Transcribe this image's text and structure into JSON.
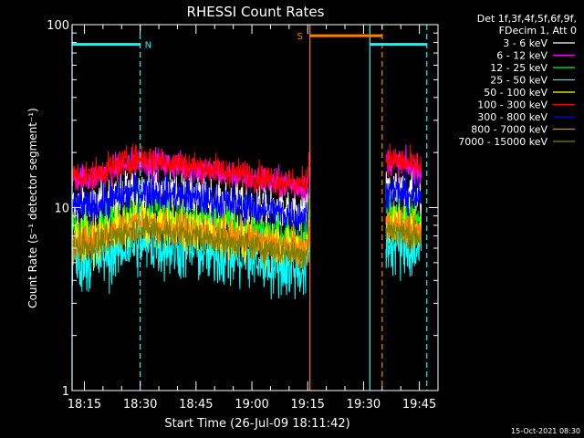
{
  "chart_data": {
    "type": "line",
    "title": "RHESSI Count Rates",
    "xlabel": "Start Time (26-Jul-09 18:11:42)",
    "ylabel": "Count Rate (s⁻¹ detector segment⁻¹)",
    "yscale": "log",
    "ylim": [
      1,
      100
    ],
    "xlim_min": [
      1091.7,
      1190.0
    ],
    "xticks": [
      {
        "min": 1095,
        "label": "18:15"
      },
      {
        "min": 1110,
        "label": "18:30"
      },
      {
        "min": 1125,
        "label": "18:45"
      },
      {
        "min": 1140,
        "label": "19:00"
      },
      {
        "min": 1155,
        "label": "19:15"
      },
      {
        "min": 1170,
        "label": "19:30"
      },
      {
        "min": 1185,
        "label": "19:45"
      }
    ],
    "yticks": [
      {
        "value": 1,
        "label": "1"
      },
      {
        "value": 10,
        "label": "10"
      },
      {
        "value": 100,
        "label": "100"
      }
    ],
    "legend_position": "right",
    "legend_header": [
      "Det 1f,3f,4f,5f,6f,9f,",
      "FDecim 1, Att 0"
    ],
    "series": [
      {
        "name": "3 - 6 keV",
        "color": "#ffffff",
        "base": 10.2,
        "noise": 0.06
      },
      {
        "name": "6 - 12 keV",
        "color": "#ff00ff",
        "base": 14.5,
        "noise": 0.04
      },
      {
        "name": "12 - 25 keV",
        "color": "#00ff00",
        "base": 7.6,
        "noise": 0.06
      },
      {
        "name": "25 - 50 keV",
        "color": "#00ffff",
        "base": 5.2,
        "noise": 0.09
      },
      {
        "name": "50 - 100 keV",
        "color": "#ffff00",
        "base": 6.8,
        "noise": 0.06
      },
      {
        "name": "100 - 300 keV",
        "color": "#ff0000",
        "base": 15.0,
        "noise": 0.04
      },
      {
        "name": "300 - 800 keV",
        "color": "#0000ff",
        "base": 10.0,
        "noise": 0.05
      },
      {
        "name": "800 - 7000 keV",
        "color": "#ff8000",
        "base": 6.6,
        "noise": 0.05
      },
      {
        "name": "7000 - 15000 keV",
        "color": "#808000",
        "base": 6.2,
        "noise": 0.04
      }
    ],
    "segments_min": [
      [
        1091.7,
        1155.6
      ],
      [
        1176.0,
        1185.5
      ]
    ],
    "annotations": [
      {
        "label": "N",
        "color": "#00ffff",
        "start_min": 1091.7,
        "end_min": 1110.0,
        "value": 78
      },
      {
        "label": "S",
        "color": "#ff8000",
        "start_min": 1155.6,
        "end_min": 1175.0,
        "value": 87
      },
      {
        "label": "",
        "color": "#00ffff",
        "start_min": 1171.7,
        "end_min": 1187.0,
        "value": 78
      }
    ],
    "vlines": [
      {
        "min": 1091.7,
        "color": "#00ffff",
        "style": "solid"
      },
      {
        "min": 1110.0,
        "color": "#00ffff",
        "style": "dashed"
      },
      {
        "min": 1155.6,
        "color": "#ff8000",
        "style": "solid"
      },
      {
        "min": 1171.7,
        "color": "#00ffff",
        "style": "solid"
      },
      {
        "min": 1175.0,
        "color": "#ff8000",
        "style": "dashed"
      },
      {
        "min": 1187.0,
        "color": "#00ffff",
        "style": "dashed"
      }
    ]
  },
  "footer": {
    "timestamp": "15-Oct-2021 08:30"
  }
}
